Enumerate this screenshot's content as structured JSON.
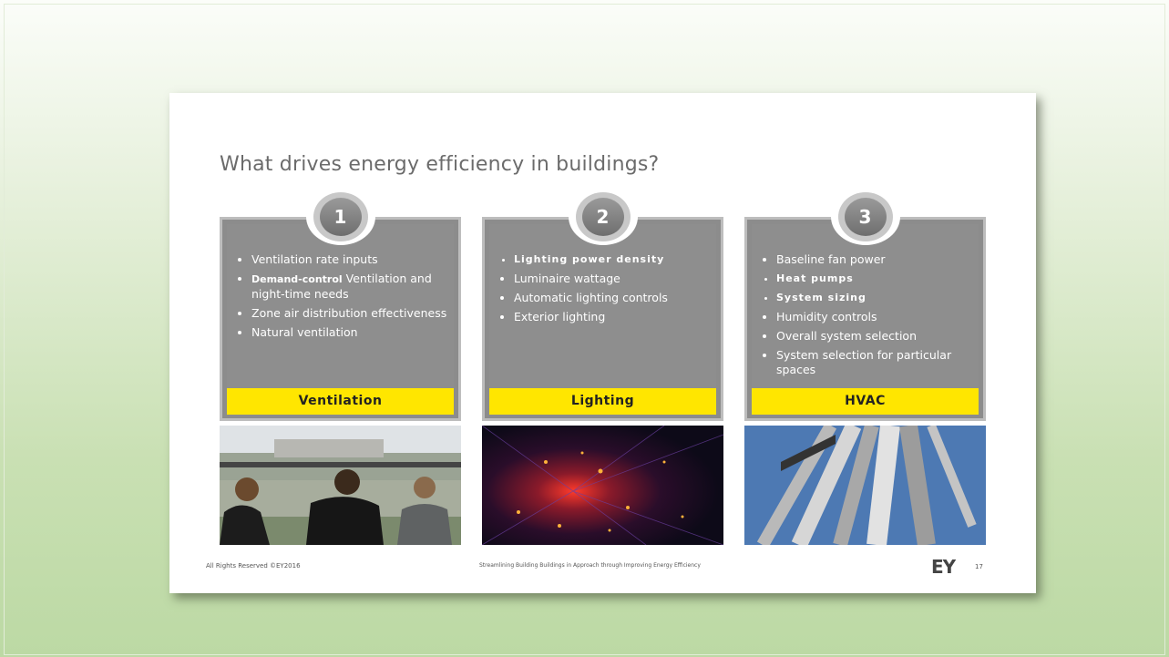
{
  "slide": {
    "title": "What drives energy efficiency in buildings?",
    "panels": [
      {
        "number": "1",
        "label": "Ventilation",
        "items": [
          {
            "text": "Ventilation  rate inputs"
          },
          {
            "lead": "Demand-control",
            "text": "Ventilation and night-time  needs"
          },
          {
            "text": "Zone  air distribution effectiveness"
          },
          {
            "text": "Natural  ventilation"
          }
        ]
      },
      {
        "number": "2",
        "label": "Lighting",
        "items": [
          {
            "text": "Lighting power density",
            "bold": true
          },
          {
            "text": "Luminaire  wattage"
          },
          {
            "text": "Automatic  lighting controls"
          },
          {
            "text": "Exterior  lighting"
          }
        ]
      },
      {
        "number": "3",
        "label": "HVAC",
        "items": [
          {
            "text": "Baseline  fan power"
          },
          {
            "text": "Heat pumps",
            "bold": true
          },
          {
            "text": "System sizing",
            "bold": true
          },
          {
            "text": "Humidity controls"
          },
          {
            "text": "Overall system selection"
          },
          {
            "text": "System selection  for particular  spaces"
          }
        ]
      }
    ],
    "footer": {
      "left": "All Rights Reserved ©EY2016",
      "center": "Streamlining Building  Buildings in Approach through Improving Energy  Efficiency",
      "logo": "EY",
      "page": "17"
    }
  }
}
